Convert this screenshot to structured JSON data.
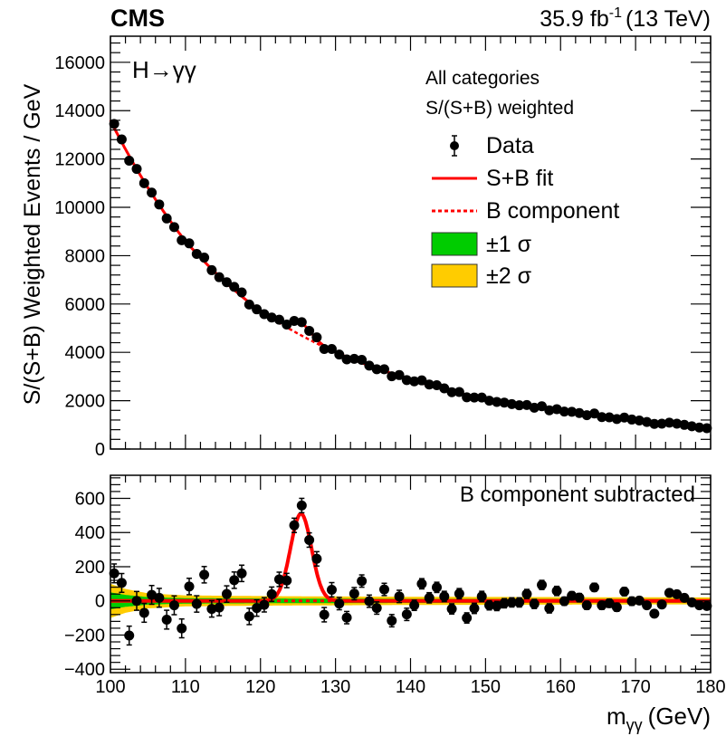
{
  "header": {
    "experiment": "CMS",
    "luminosity": "35.9 fb",
    "lumi_exponent": "-1",
    "energy": "(13 TeV)"
  },
  "colors": {
    "data": "#000000",
    "fit": "#ff0000",
    "band_1sigma": "#00cc00",
    "band_2sigma": "#ffcc00"
  },
  "chart_data": [
    {
      "type": "scatter",
      "panel": "top",
      "process_label": "H→γγ",
      "ylabel": "S/(S+B) Weighted Events / GeV",
      "xlim": [
        100,
        180
      ],
      "ylim": [
        0,
        17080
      ],
      "yticks": [
        0,
        2000,
        4000,
        6000,
        8000,
        10000,
        12000,
        14000,
        16000
      ],
      "legend": {
        "placement": "top-right",
        "title_lines": [
          "All categories",
          "S/(S+B) weighted"
        ],
        "entries": [
          "Data",
          "S+B fit",
          "B component",
          "±1 σ",
          "±2 σ"
        ]
      },
      "x": [
        100.5,
        101.5,
        102.5,
        103.5,
        104.5,
        105.5,
        106.5,
        107.5,
        108.5,
        109.5,
        110.5,
        111.5,
        112.5,
        113.5,
        114.5,
        115.5,
        116.5,
        117.5,
        118.5,
        119.5,
        120.5,
        121.5,
        122.5,
        123.5,
        124.5,
        125.5,
        126.5,
        127.5,
        128.5,
        129.5,
        130.5,
        131.5,
        132.5,
        133.5,
        134.5,
        135.5,
        136.5,
        137.5,
        138.5,
        139.5,
        140.5,
        141.5,
        142.5,
        143.5,
        144.5,
        145.5,
        146.5,
        147.5,
        148.5,
        149.5,
        150.5,
        151.5,
        152.5,
        153.5,
        154.5,
        155.5,
        156.5,
        157.5,
        158.5,
        159.5,
        160.5,
        161.5,
        162.5,
        163.5,
        164.5,
        165.5,
        166.5,
        167.5,
        168.5,
        169.5,
        170.5,
        171.5,
        172.5,
        173.5,
        174.5,
        175.5,
        176.5,
        177.5,
        178.5,
        179.5
      ],
      "values": [
        13450,
        12810,
        11930,
        11590,
        11000,
        10610,
        10120,
        9540,
        9180,
        8640,
        8510,
        8070,
        7920,
        7400,
        7110,
        6900,
        6710,
        6480,
        5980,
        5780,
        5580,
        5440,
        5350,
        5150,
        5300,
        5250,
        4890,
        4620,
        4140,
        4140,
        3910,
        3710,
        3730,
        3690,
        3450,
        3300,
        3300,
        3010,
        3060,
        2850,
        2800,
        2840,
        2670,
        2640,
        2510,
        2350,
        2360,
        2140,
        2130,
        2130,
        2000,
        1950,
        1920,
        1860,
        1810,
        1820,
        1710,
        1770,
        1600,
        1650,
        1550,
        1540,
        1490,
        1400,
        1470,
        1320,
        1310,
        1240,
        1300,
        1220,
        1180,
        1120,
        1040,
        1050,
        1090,
        1050,
        1000,
        940,
        890,
        860
      ],
      "b_component": {
        "x": [
          100,
          110,
          120,
          130,
          140,
          150,
          160,
          170,
          180
        ],
        "values": [
          13600,
          8600,
          5700,
          4000,
          2880,
          2060,
          1570,
          1200,
          870
        ]
      },
      "signal": {
        "mass": 125.4,
        "peak": 510,
        "sigma": 1.4
      }
    },
    {
      "type": "scatter",
      "panel": "bottom",
      "annotation": "B component subtracted",
      "xlabel": "m",
      "xlabel_sub": "γγ",
      "xlabel_unit": "(GeV)",
      "xlim": [
        100,
        180
      ],
      "ylim": [
        -420,
        735
      ],
      "yticks": [
        -400,
        -200,
        0,
        200,
        400,
        600
      ],
      "xticks": [
        100,
        110,
        120,
        130,
        140,
        150,
        160,
        170,
        180
      ],
      "values": [
        161,
        105,
        -203,
        0,
        -70,
        35,
        18,
        -110,
        -26,
        -161,
        84,
        -18,
        153,
        -47,
        -39,
        40,
        121,
        161,
        -91,
        -42,
        -23,
        39,
        126,
        119,
        442,
        558,
        356,
        246,
        -81,
        65,
        -16,
        -98,
        42,
        116,
        -2,
        -42,
        67,
        -116,
        26,
        -79,
        -26,
        100,
        18,
        79,
        26,
        -47,
        42,
        -100,
        -44,
        26,
        -26,
        -30,
        -14,
        -9,
        -9,
        40,
        -18,
        93,
        -44,
        58,
        -2,
        30,
        19,
        -26,
        79,
        -26,
        -14,
        -37,
        54,
        -2,
        2,
        -26,
        -75,
        -21,
        47,
        39,
        18,
        -9,
        -26,
        -30
      ],
      "errors": [
        55,
        55,
        55,
        55,
        55,
        55,
        55,
        55,
        55,
        55,
        48,
        48,
        48,
        48,
        48,
        48,
        48,
        48,
        48,
        48,
        42,
        42,
        42,
        42,
        42,
        42,
        42,
        42,
        42,
        42,
        36,
        36,
        36,
        36,
        36,
        36,
        36,
        36,
        36,
        36,
        30,
        30,
        30,
        30,
        30,
        30,
        30,
        30,
        30,
        30,
        27,
        27,
        27,
        27,
        27,
        27,
        27,
        27,
        27,
        27,
        24,
        24,
        24,
        24,
        24,
        24,
        24,
        24,
        24,
        24,
        20,
        20,
        20,
        20,
        20,
        20,
        20,
        20,
        20,
        20
      ],
      "band_1sigma": {
        "x": [
          100,
          102,
          105,
          110,
          120,
          140,
          180
        ],
        "halfwidth": [
          50,
          35,
          22,
          16,
          14,
          12,
          10
        ]
      },
      "band_2sigma": {
        "x": [
          100,
          102,
          105,
          110,
          120,
          140,
          180
        ],
        "halfwidth": [
          100,
          70,
          44,
          32,
          28,
          24,
          20
        ]
      }
    }
  ]
}
